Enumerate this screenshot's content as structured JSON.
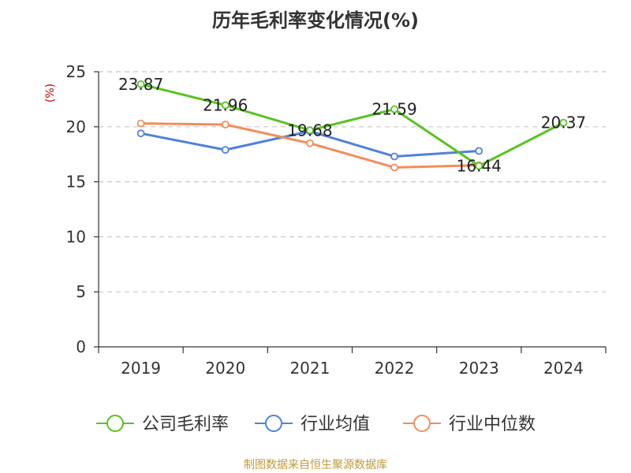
{
  "chart_data": {
    "type": "line",
    "title": "历年毛利率变化情况(%)",
    "ylabel": "(%)",
    "xlabel": "",
    "categories": [
      "2019",
      "2020",
      "2021",
      "2022",
      "2023",
      "2024"
    ],
    "ylim": [
      0,
      25
    ],
    "yticks": [
      0,
      5,
      10,
      15,
      20,
      25
    ],
    "grid": true,
    "legend_position": "bottom",
    "series": [
      {
        "name": "公司毛利率",
        "color": "#5ac322",
        "values": [
          23.87,
          21.96,
          19.68,
          21.59,
          16.44,
          20.37
        ],
        "labels": [
          "23.87",
          "21.96",
          "19.68",
          "21.59",
          "16.44",
          "20.37"
        ]
      },
      {
        "name": "行业均值",
        "color": "#4f81d9",
        "values": [
          19.4,
          17.9,
          19.6,
          17.3,
          17.8,
          null
        ]
      },
      {
        "name": "行业中位数",
        "color": "#f48c5a",
        "values": [
          20.3,
          20.2,
          18.5,
          16.3,
          16.5,
          null
        ]
      }
    ]
  },
  "source": "制图数据来自恒生聚源数据库"
}
